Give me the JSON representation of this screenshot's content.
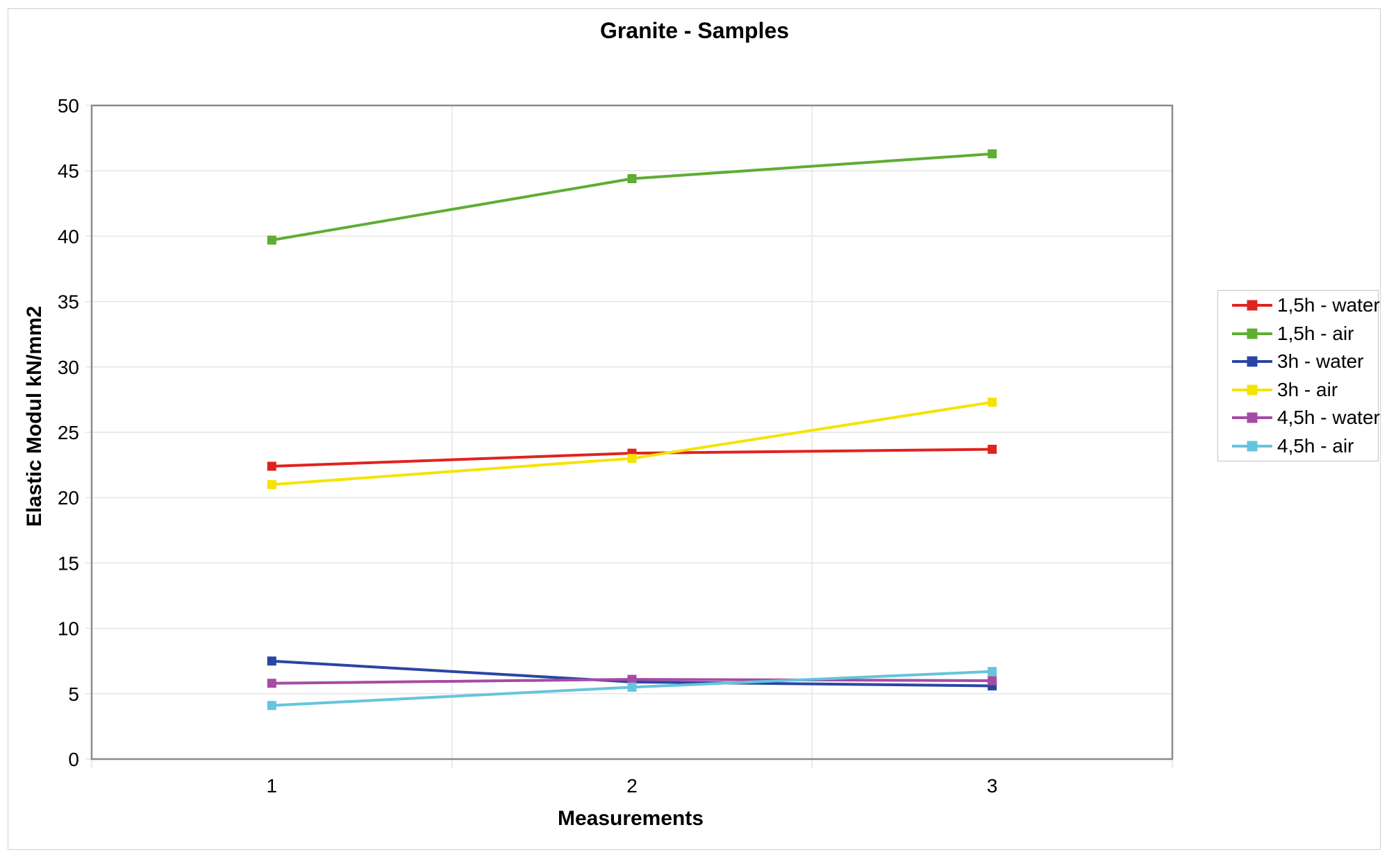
{
  "chart_data": {
    "type": "line",
    "title": "Granite - Samples",
    "xlabel": "Measurements",
    "ylabel": "Elastic Modul kN/mm2",
    "categories": [
      "1",
      "2",
      "3"
    ],
    "ylim": [
      0,
      50
    ],
    "yticks": [
      0,
      5,
      10,
      15,
      20,
      25,
      30,
      35,
      40,
      45,
      50
    ],
    "grid": {
      "horizontal_major": true,
      "vertical_category_boundaries": true
    },
    "legend_position": "right",
    "marker": "square",
    "series": [
      {
        "name": "1,5h - water",
        "color": "#df2320",
        "values": [
          22.4,
          23.4,
          23.7
        ]
      },
      {
        "name": "1,5h - air",
        "color": "#5fad33",
        "values": [
          39.7,
          44.4,
          46.3
        ]
      },
      {
        "name": "3h - water",
        "color": "#2b45a4",
        "values": [
          7.5,
          5.9,
          5.6
        ]
      },
      {
        "name": "3h - air",
        "color": "#f4e300",
        "values": [
          21.0,
          23.0,
          27.3
        ]
      },
      {
        "name": "4,5h - water",
        "color": "#a54ba5",
        "values": [
          5.8,
          6.1,
          6.0
        ]
      },
      {
        "name": "4,5h - air",
        "color": "#66c4dc",
        "values": [
          4.1,
          5.5,
          6.7
        ]
      }
    ]
  }
}
